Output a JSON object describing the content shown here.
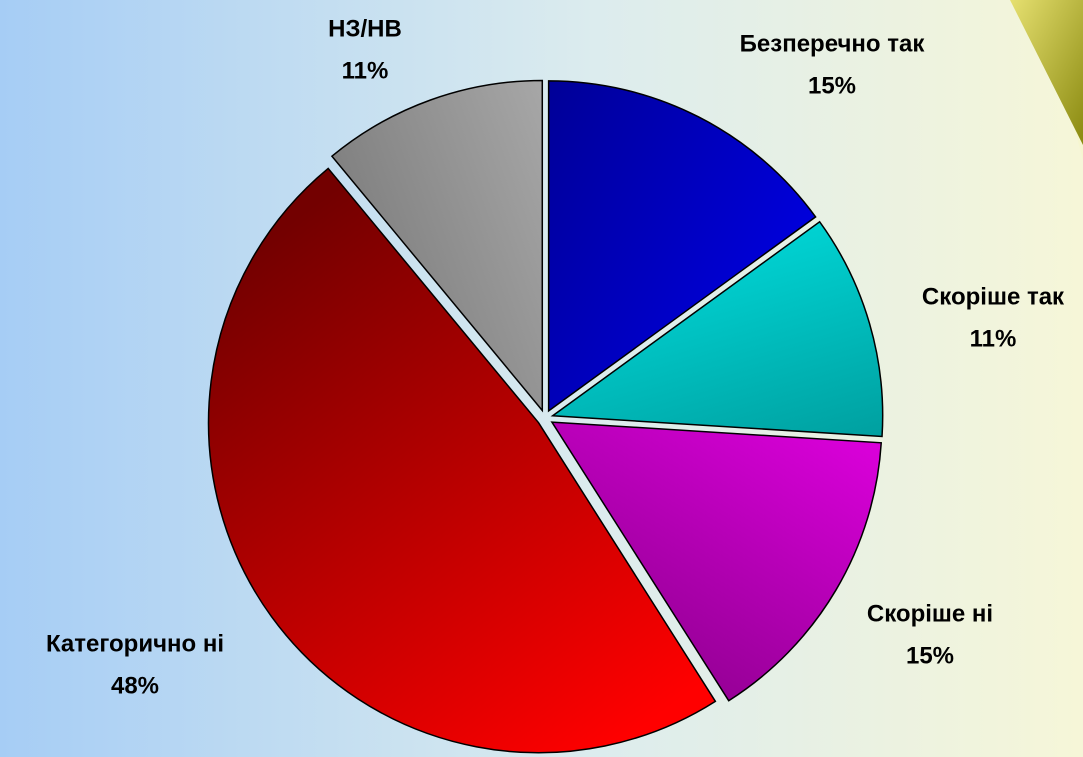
{
  "chart_data": {
    "type": "pie",
    "categories": [
      "Безперечно так",
      "Скоріше так",
      "Скоріше ні",
      "Категорично ні",
      "НЗ/НВ"
    ],
    "values": [
      15,
      11,
      15,
      48,
      11
    ],
    "value_labels": [
      "15%",
      "11%",
      "15%",
      "48%",
      "11%"
    ],
    "colors": [
      "#0000ff",
      "#00ffff",
      "#ff00ff",
      "#ff0000",
      "#c0c0c0"
    ]
  }
}
